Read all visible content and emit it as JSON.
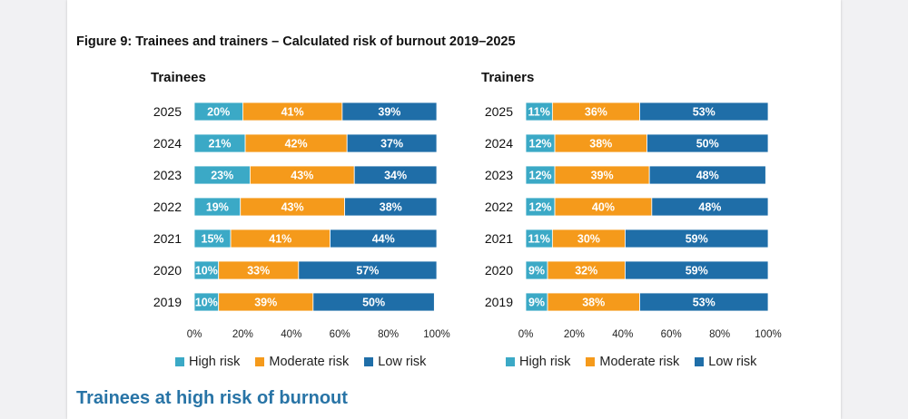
{
  "figure_title": "Figure 9: Trainees and trainers – Calculated risk of burnout 2019–2025",
  "section_heading": "Trainees at high risk of burnout",
  "colors": {
    "high": "#3ba9c6",
    "moderate": "#f59a1b",
    "low": "#1f6ea8"
  },
  "chart_data": [
    {
      "type": "bar",
      "orientation": "horizontal",
      "stacked": true,
      "title": "Trainees",
      "categories": [
        "2025",
        "2024",
        "2023",
        "2022",
        "2021",
        "2020",
        "2019"
      ],
      "series": [
        {
          "name": "High risk",
          "color_key": "high",
          "values": [
            20,
            21,
            23,
            19,
            15,
            10,
            10
          ]
        },
        {
          "name": "Moderate risk",
          "color_key": "moderate",
          "values": [
            41,
            42,
            43,
            43,
            41,
            33,
            39
          ]
        },
        {
          "name": "Low risk",
          "color_key": "low",
          "values": [
            39,
            37,
            34,
            38,
            44,
            57,
            50
          ]
        }
      ],
      "xticks": [
        "0%",
        "20%",
        "40%",
        "60%",
        "80%",
        "100%"
      ],
      "xlim": [
        0,
        100
      ],
      "grid": false,
      "legend_position": "bottom"
    },
    {
      "type": "bar",
      "orientation": "horizontal",
      "stacked": true,
      "title": "Trainers",
      "categories": [
        "2025",
        "2024",
        "2023",
        "2022",
        "2021",
        "2020",
        "2019"
      ],
      "series": [
        {
          "name": "High risk",
          "color_key": "high",
          "values": [
            11,
            12,
            12,
            12,
            11,
            9,
            9
          ]
        },
        {
          "name": "Moderate risk",
          "color_key": "moderate",
          "values": [
            36,
            38,
            39,
            40,
            30,
            32,
            38
          ]
        },
        {
          "name": "Low risk",
          "color_key": "low",
          "values": [
            53,
            50,
            48,
            48,
            59,
            59,
            53
          ]
        }
      ],
      "xticks": [
        "0%",
        "20%",
        "40%",
        "60%",
        "80%",
        "100%"
      ],
      "xlim": [
        0,
        100
      ],
      "grid": false,
      "legend_position": "bottom"
    }
  ]
}
